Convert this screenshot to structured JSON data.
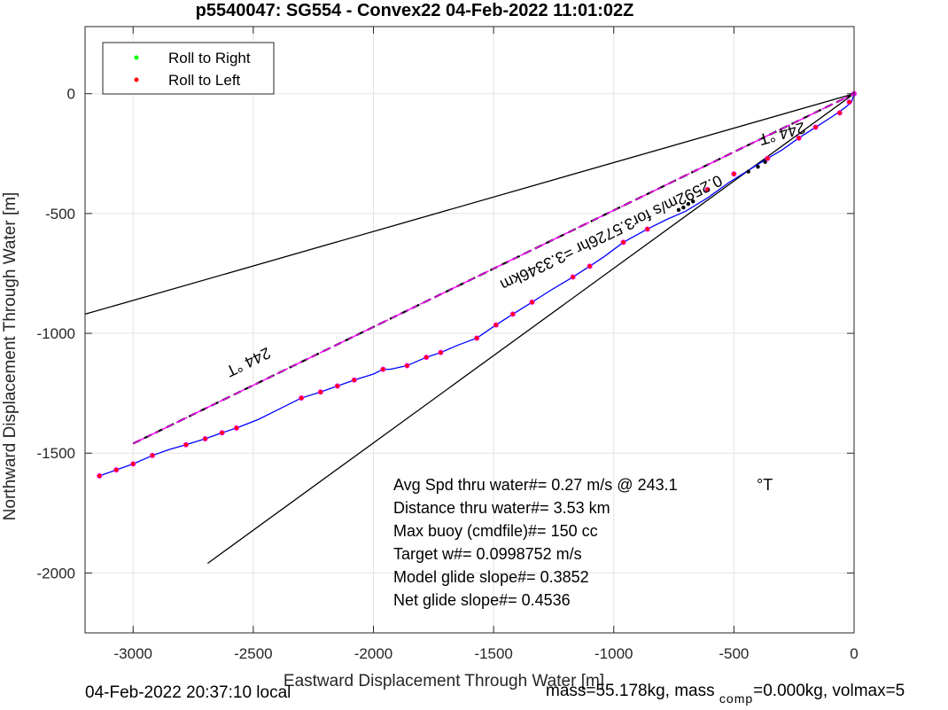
{
  "chart_data": {
    "type": "line",
    "title": "p5540047: SG554 - Convex22 04-Feb-2022 11:01:02Z",
    "xlabel": "Eastward Displacement Through Water [m]",
    "ylabel": "Northward Displacement Through Water [m]",
    "xlim": [
      -3200,
      0
    ],
    "ylim": [
      -2250,
      280
    ],
    "grid": true,
    "x_ticks": [
      -3000,
      -2500,
      -2000,
      -1500,
      -1000,
      -500,
      0
    ],
    "x_tick_labels": [
      "-3000",
      "-2500",
      "-2000",
      "-1500",
      "-1000",
      "-500",
      "0"
    ],
    "y_ticks": [
      0,
      -500,
      -1000,
      -1500,
      -2000
    ],
    "y_tick_labels": [
      "0",
      "-500",
      "-1000",
      "-1500",
      "-2000"
    ],
    "legend": {
      "placement": "top-left",
      "entries": [
        {
          "label": "Roll to Right",
          "color": "#00ff00"
        },
        {
          "label": "Roll to Left",
          "color": "#ff0000"
        }
      ]
    },
    "track": {
      "name": "dive track",
      "color": "#0000ff",
      "x": [
        -3140,
        -3070,
        -3000,
        -2920,
        -2850,
        -2780,
        -2700,
        -2630,
        -2570,
        -2480,
        -2400,
        -2300,
        -2220,
        -2150,
        -2080,
        -2000,
        -1960,
        -1930,
        -1860,
        -1780,
        -1720,
        -1650,
        -1570,
        -1490,
        -1420,
        -1340,
        -1270,
        -1170,
        -1100,
        -1040,
        -960,
        -860,
        -780,
        -700,
        -610,
        -520,
        -440,
        -360,
        -300,
        -230,
        -160,
        -90,
        -40,
        -10,
        0
      ],
      "y": [
        -1595,
        -1570,
        -1545,
        -1510,
        -1485,
        -1465,
        -1440,
        -1415,
        -1395,
        -1360,
        -1320,
        -1270,
        -1245,
        -1220,
        -1195,
        -1170,
        -1150,
        -1150,
        -1135,
        -1100,
        -1080,
        -1050,
        -1020,
        -965,
        -920,
        -870,
        -825,
        -765,
        -720,
        -680,
        -620,
        -565,
        -525,
        -490,
        -435,
        -370,
        -320,
        -270,
        -235,
        -185,
        -140,
        -95,
        -60,
        -35,
        0
      ],
      "roll_left_markers_x": [
        -3140,
        -3070,
        -3000,
        -2920,
        -2780,
        -2700,
        -2630,
        -2570,
        -2300,
        -2220,
        -2150,
        -2080,
        -1960,
        -1860,
        -1780,
        -1720,
        -1570,
        -1490,
        -1420,
        -1340,
        -1170,
        -1100,
        -960,
        -860,
        -610,
        -500,
        -360,
        -230,
        -160,
        -60,
        -20
      ],
      "roll_left_markers_y": [
        -1595,
        -1570,
        -1545,
        -1510,
        -1465,
        -1440,
        -1415,
        -1395,
        -1270,
        -1245,
        -1220,
        -1195,
        -1150,
        -1135,
        -1100,
        -1080,
        -1020,
        -965,
        -920,
        -870,
        -765,
        -720,
        -620,
        -565,
        -400,
        -335,
        -270,
        -185,
        -140,
        -80,
        -35
      ]
    },
    "heading_line": {
      "x": [
        -3000,
        0
      ],
      "y": [
        -1460,
        0
      ],
      "style": "black dashed",
      "label": "244 °T"
    },
    "current_line": {
      "x": [
        -3000,
        0
      ],
      "y": [
        -1460,
        0
      ],
      "color": "#ff00ff",
      "label": "0.2592m/s for3.5726hr =3.3346km"
    },
    "envelope_lines": [
      {
        "x": [
          -3200,
          0
        ],
        "y": [
          -920,
          0
        ]
      },
      {
        "x": [
          -2690,
          0
        ],
        "y": [
          -1960,
          0
        ]
      }
    ],
    "upper_line_label": "244 °T",
    "black_dots_x": [
      -730,
      -710,
      -690,
      -670,
      -440,
      -400,
      -370
    ],
    "black_dots_y": [
      -485,
      -475,
      -460,
      -450,
      -325,
      -305,
      -285
    ],
    "annotations": [
      "Avg Spd thru water#=  0.27 m/s @ 243.1",
      "Distance thru water#=  3.53 km",
      "Max buoy (cmdfile)#= 150 cc",
      "Target w#= 0.0998752 m/s",
      "Model glide slope#= 0.3852",
      "Net glide slope#= 0.4536"
    ],
    "annotation_unit": "°T"
  },
  "footer": {
    "left": "04-Feb-2022 20:37:10 local",
    "right_part1": "mass=55.178kg, mass",
    "right_sub": "comp",
    "right_part2": "=0.000kg, volmax=5"
  }
}
